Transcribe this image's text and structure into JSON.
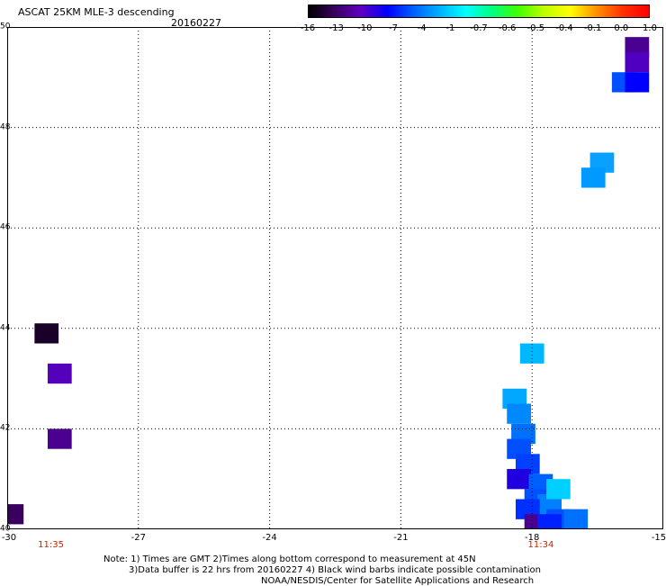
{
  "title": "ASCAT 25KM MLE-3 descending",
  "date": "20160227",
  "colorbar": {
    "labels": [
      "-16",
      "-13",
      "-10",
      "-7",
      "-4",
      "-1",
      "-0.7",
      "-0.6",
      "-0.5",
      "-0.4",
      "-0.1",
      "0.0",
      "1.0"
    ],
    "colors": [
      "#000000",
      "#3a0060",
      "#6000c0",
      "#0000ff",
      "#0060ff",
      "#00b0ff",
      "#00ffff",
      "#00ff80",
      "#40ff00",
      "#c0ff00",
      "#ffff00",
      "#ff9000",
      "#ff3000",
      "#ff0000"
    ]
  },
  "map": {
    "lon_range": [
      -30,
      -15
    ],
    "lat_range": [
      40,
      50
    ],
    "x_ticks": [
      "-30",
      "-27",
      "-24",
      "-21",
      "-18",
      "-15"
    ],
    "y_ticks": [
      "40",
      "42",
      "44",
      "46",
      "48",
      "50"
    ],
    "pass_times": [
      {
        "label": "11:35",
        "lon": -29.0
      },
      {
        "label": "11:34",
        "lon": -17.8
      }
    ],
    "cells": [
      {
        "lon": -29.1,
        "lat": 43.9,
        "color": "#1a0028"
      },
      {
        "lon": -28.8,
        "lat": 43.1,
        "color": "#5500bb"
      },
      {
        "lon": -28.8,
        "lat": 41.8,
        "color": "#4c0090"
      },
      {
        "lon": -29.9,
        "lat": 40.3,
        "color": "#3a0060"
      },
      {
        "lon": -15.6,
        "lat": 49.6,
        "color": "#4a0090"
      },
      {
        "lon": -15.6,
        "lat": 49.3,
        "color": "#5000c0"
      },
      {
        "lon": -15.9,
        "lat": 48.9,
        "color": "#0050ff"
      },
      {
        "lon": -15.6,
        "lat": 48.9,
        "color": "#0000ff"
      },
      {
        "lon": -16.4,
        "lat": 47.3,
        "color": "#0aa0ff"
      },
      {
        "lon": -16.6,
        "lat": 47.0,
        "color": "#0099ff"
      },
      {
        "lon": -18.0,
        "lat": 43.5,
        "color": "#00b8ff"
      },
      {
        "lon": -18.4,
        "lat": 42.6,
        "color": "#00a8ff"
      },
      {
        "lon": -18.3,
        "lat": 42.3,
        "color": "#0088ff"
      },
      {
        "lon": -18.2,
        "lat": 41.9,
        "color": "#0070ff"
      },
      {
        "lon": -18.3,
        "lat": 41.6,
        "color": "#0050ff"
      },
      {
        "lon": -18.1,
        "lat": 41.3,
        "color": "#0040ff"
      },
      {
        "lon": -18.3,
        "lat": 41.0,
        "color": "#2000e0"
      },
      {
        "lon": -17.8,
        "lat": 40.9,
        "color": "#0060ff"
      },
      {
        "lon": -17.9,
        "lat": 40.6,
        "color": "#0050ff"
      },
      {
        "lon": -17.6,
        "lat": 40.5,
        "color": "#0080ff"
      },
      {
        "lon": -17.4,
        "lat": 40.8,
        "color": "#00d0ff"
      },
      {
        "lon": -18.1,
        "lat": 40.4,
        "color": "#0030ff"
      },
      {
        "lon": -17.4,
        "lat": 40.2,
        "color": "#0050ff"
      },
      {
        "lon": -17.0,
        "lat": 40.2,
        "color": "#0070ff"
      },
      {
        "lon": -17.9,
        "lat": 40.1,
        "color": "#4a0090"
      },
      {
        "lon": -17.6,
        "lat": 40.1,
        "color": "#0020ff"
      }
    ]
  },
  "notes": {
    "line1": "Note: 1) Times are GMT 2)Times along bottom correspond to measurement at 45N",
    "line2": "3)Data buffer is 22 hrs from 20160227 4) Black wind barbs indicate possible contamination",
    "line3": "NOAA/NESDIS/Center for Satellite Applications and Research"
  }
}
